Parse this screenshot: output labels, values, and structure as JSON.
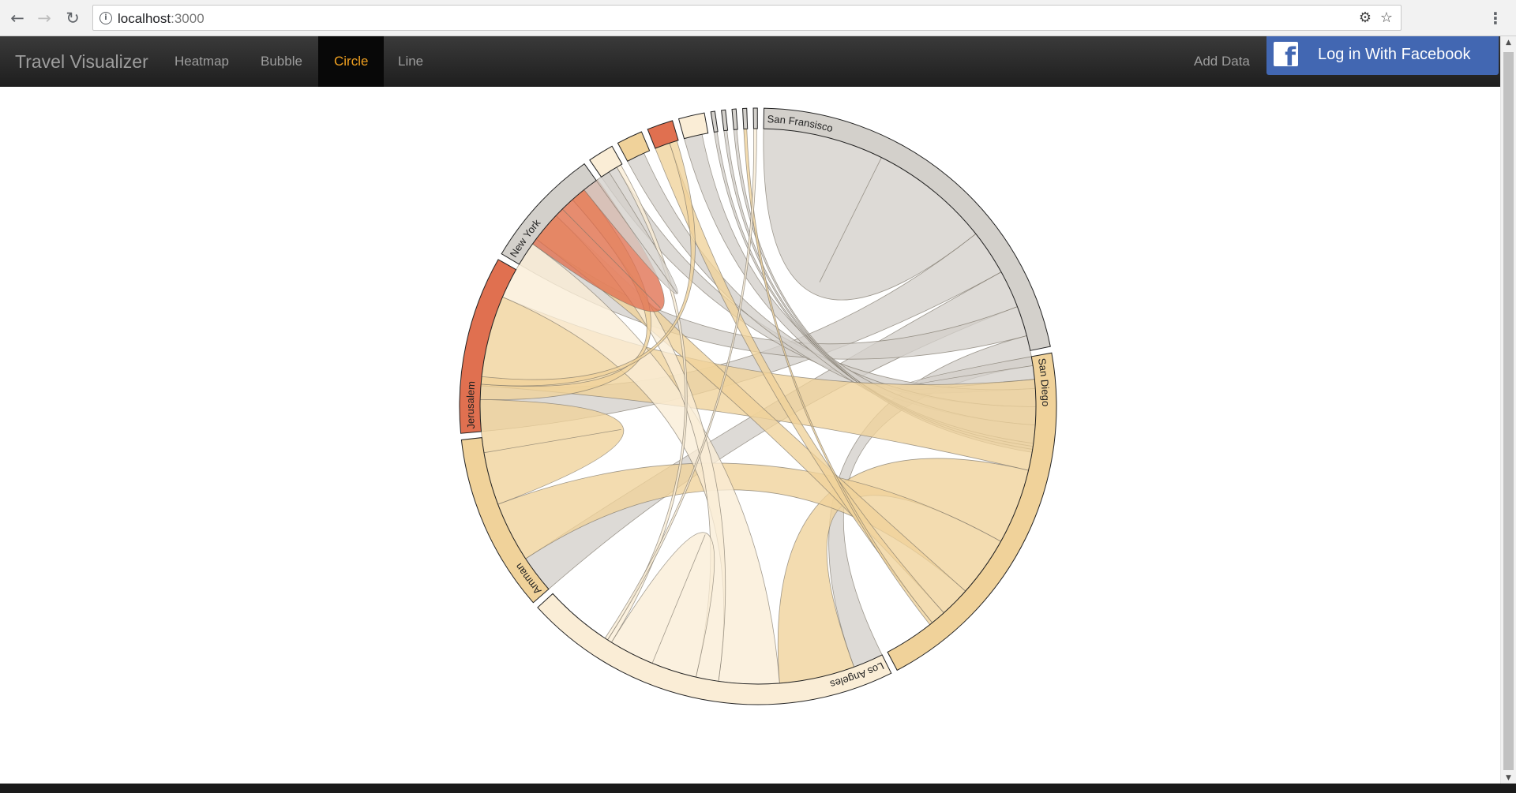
{
  "browser": {
    "url_host": "localhost",
    "url_port": ":3000"
  },
  "app": {
    "brand": "Travel Visualizer",
    "nav": [
      {
        "label": "Heatmap",
        "active": false
      },
      {
        "label": "Bubble",
        "active": false
      },
      {
        "label": "Circle",
        "active": true
      },
      {
        "label": "Line",
        "active": false
      }
    ],
    "add_data_label": "Add Data",
    "facebook_label": "Log in With Facebook"
  },
  "colors": {
    "navbar": "#222222",
    "active_nav_text": "#f0a020",
    "facebook_blue": "#4267b2"
  },
  "chart_data": {
    "type": "chord",
    "groups": [
      {
        "name": "San Fransisco",
        "value": 24.5,
        "color": "#d3d0cb"
      },
      {
        "name": "San Diego",
        "value": 23.0,
        "color": "#f0d29a"
      },
      {
        "name": "Los Angeles",
        "value": 23.5,
        "color": "#faedd6"
      },
      {
        "name": "Amman",
        "value": 11.0,
        "color": "#f0d29a"
      },
      {
        "name": "Jerusalem",
        "value": 11.0,
        "color": "#e07050"
      },
      {
        "name": "New York",
        "value": 7.5,
        "color": "#d3d0cb"
      },
      {
        "name": "",
        "value": 1.6,
        "color": "#faedd6"
      },
      {
        "name": "",
        "value": 1.6,
        "color": "#f0d29a"
      },
      {
        "name": "",
        "value": 1.6,
        "color": "#e07050"
      },
      {
        "name": "",
        "value": 1.6,
        "color": "#faedd6"
      },
      {
        "name": "",
        "value": 0.25,
        "color": "#d3d0cb"
      },
      {
        "name": "",
        "value": 0.25,
        "color": "#d3d0cb"
      },
      {
        "name": "",
        "value": 0.25,
        "color": "#d3d0cb"
      },
      {
        "name": "",
        "value": 0.25,
        "color": "#d3d0cb"
      },
      {
        "name": "",
        "value": 0.25,
        "color": "#d3d0cb"
      }
    ],
    "chords": [
      [
        0,
        0,
        8.0
      ],
      [
        0,
        4,
        3.0
      ],
      [
        0,
        3,
        2.5
      ],
      [
        0,
        5,
        2.0
      ],
      [
        0,
        2,
        2.0
      ],
      [
        0,
        1,
        1.5
      ],
      [
        0,
        6,
        1.2
      ],
      [
        0,
        7,
        1.2
      ],
      [
        0,
        9,
        1.2
      ],
      [
        0,
        10,
        0.2
      ],
      [
        0,
        11,
        0.2
      ],
      [
        0,
        12,
        0.2
      ],
      [
        1,
        4,
        6.0
      ],
      [
        1,
        2,
        5.0
      ],
      [
        1,
        3,
        4.0
      ],
      [
        1,
        5,
        2.0
      ],
      [
        1,
        8,
        1.0
      ],
      [
        1,
        13,
        0.2
      ],
      [
        2,
        4,
        4.0
      ],
      [
        2,
        5,
        1.5
      ],
      [
        2,
        2,
        3.0
      ],
      [
        2,
        6,
        0.3
      ],
      [
        2,
        14,
        0.2
      ],
      [
        3,
        3,
        3.5
      ],
      [
        3,
        5,
        1.0
      ],
      [
        3,
        8,
        0.5
      ],
      [
        4,
        4,
        3.0
      ],
      [
        5,
        5,
        1.0
      ]
    ]
  }
}
